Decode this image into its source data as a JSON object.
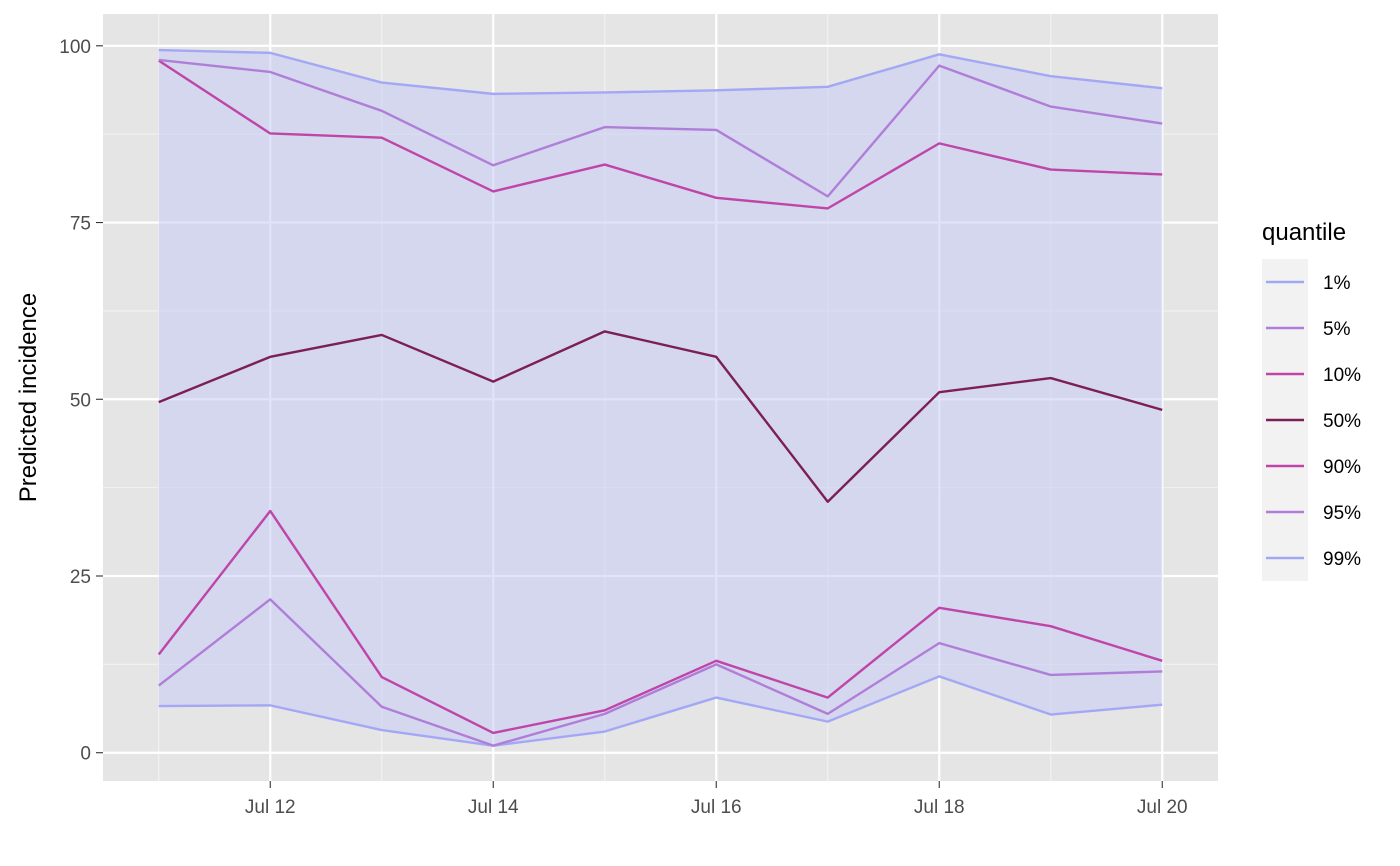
{
  "chart_data": {
    "type": "line",
    "title": "",
    "xlabel": "",
    "ylabel": "Predicted incidence",
    "x": [
      "2023-07-11",
      "2023-07-12",
      "2023-07-13",
      "2023-07-14",
      "2023-07-15",
      "2023-07-16",
      "2023-07-17",
      "2023-07-18",
      "2023-07-19",
      "2023-07-20"
    ],
    "x_tick_labels": [
      {
        "date": "2023-07-12",
        "label": "Jul 12"
      },
      {
        "date": "2023-07-14",
        "label": "Jul 14"
      },
      {
        "date": "2023-07-16",
        "label": "Jul 16"
      },
      {
        "date": "2023-07-18",
        "label": "Jul 18"
      },
      {
        "date": "2023-07-20",
        "label": "Jul 20"
      }
    ],
    "xlim": [
      "2023-07-10T12:00",
      "2023-07-20T12:00"
    ],
    "y_ticks": [
      0,
      25,
      50,
      75,
      100
    ],
    "ylim": [
      -4,
      104.5
    ],
    "grid": true,
    "background": "#e5e5e5",
    "band": {
      "lower": "1%",
      "upper": "99%",
      "color": "#c7ccf5",
      "opacity": 0.55
    },
    "series": [
      {
        "name": "1%",
        "color": "#a3a8f5",
        "values": [
          6.6,
          6.7,
          3.2,
          1.0,
          3.0,
          7.8,
          4.4,
          10.8,
          5.4,
          6.8
        ]
      },
      {
        "name": "5%",
        "color": "#b07ed8",
        "values": [
          9.5,
          21.7,
          6.5,
          1.0,
          5.5,
          12.5,
          5.5,
          15.5,
          11.0,
          11.5
        ]
      },
      {
        "name": "10%",
        "color": "#bf45a8",
        "values": [
          13.9,
          34.2,
          10.7,
          2.8,
          6.0,
          13.0,
          7.8,
          20.5,
          17.9,
          13.0
        ]
      },
      {
        "name": "50%",
        "color": "#7c1f57",
        "values": [
          49.6,
          56.0,
          59.1,
          52.5,
          59.6,
          56.0,
          35.5,
          51.0,
          53.0,
          48.5
        ]
      },
      {
        "name": "90%",
        "color": "#bf45a8",
        "values": [
          97.9,
          87.6,
          87.0,
          79.4,
          83.2,
          78.5,
          77.0,
          86.2,
          82.5,
          81.8
        ]
      },
      {
        "name": "95%",
        "color": "#b07ed8",
        "values": [
          98.0,
          96.3,
          90.8,
          83.1,
          88.5,
          88.1,
          78.7,
          97.2,
          91.4,
          89.0
        ]
      },
      {
        "name": "99%",
        "color": "#a3a8f5",
        "values": [
          99.4,
          99.0,
          94.8,
          93.2,
          93.4,
          93.7,
          94.2,
          98.8,
          95.7,
          94.0
        ]
      }
    ],
    "legend": {
      "title": "quantile",
      "position": "right",
      "items": [
        "1%",
        "5%",
        "10%",
        "50%",
        "90%",
        "95%",
        "99%"
      ]
    }
  }
}
